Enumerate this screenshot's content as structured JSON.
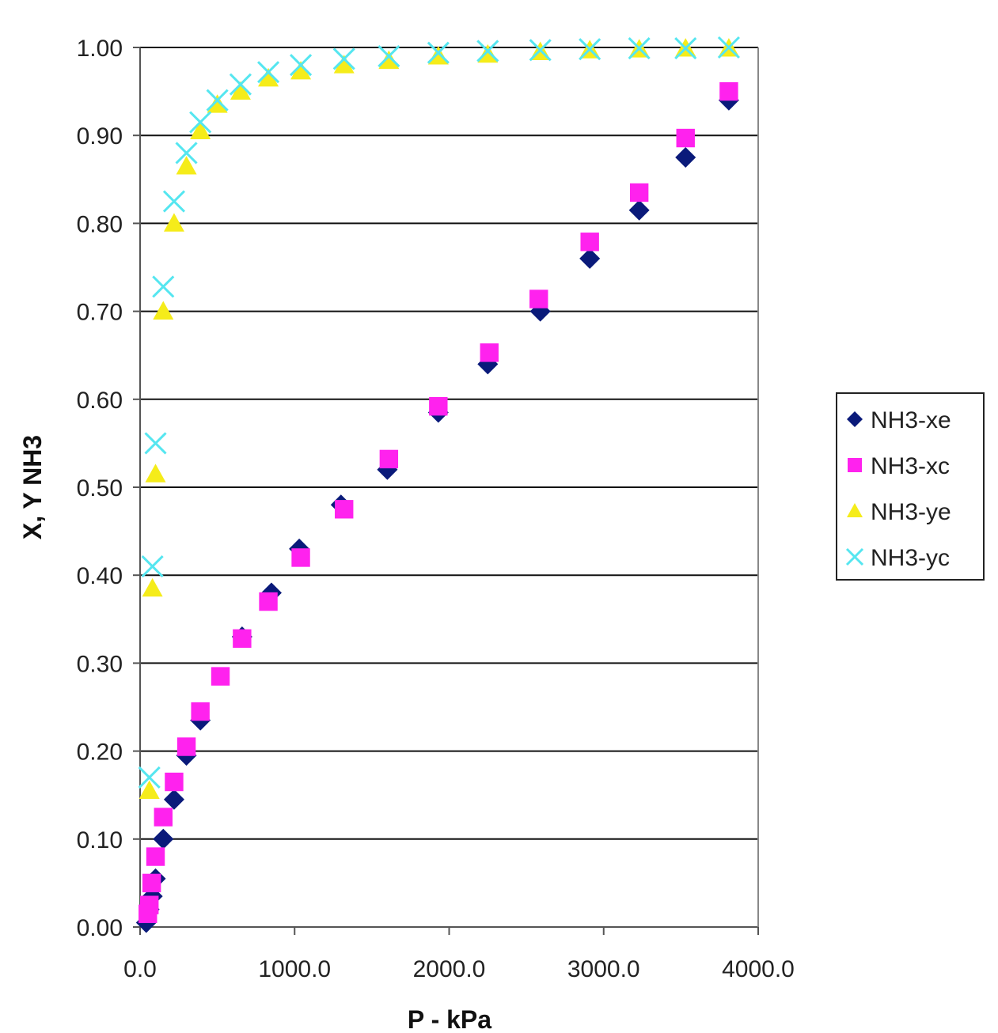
{
  "chart_data": {
    "type": "scatter",
    "xlabel": "P - kPa",
    "ylabel": "X, Y NH3",
    "xlim": [
      0,
      4000
    ],
    "ylim": [
      0,
      1
    ],
    "x_ticks": [
      "0.0",
      "1000.0",
      "2000.0",
      "3000.0",
      "4000.0"
    ],
    "y_ticks": [
      "0.00",
      "0.10",
      "0.20",
      "0.30",
      "0.40",
      "0.50",
      "0.60",
      "0.70",
      "0.80",
      "0.90",
      "1.00"
    ],
    "grid": "horizontal",
    "legend_position": "right",
    "series": [
      {
        "name": "NH3-xe",
        "marker": "diamond",
        "color": "#0a1a7a",
        "x": [
          40,
          60,
          80,
          100,
          150,
          220,
          300,
          390,
          660,
          850,
          1030,
          1300,
          1600,
          1930,
          2250,
          2590,
          2910,
          3230,
          3530,
          3810
        ],
        "y": [
          0.005,
          0.02,
          0.035,
          0.055,
          0.1,
          0.145,
          0.195,
          0.235,
          0.33,
          0.38,
          0.43,
          0.48,
          0.52,
          0.585,
          0.64,
          0.7,
          0.76,
          0.815,
          0.875,
          0.94
        ]
      },
      {
        "name": "NH3-xc",
        "marker": "square",
        "color": "#ff22ee",
        "x": [
          50,
          60,
          75,
          100,
          150,
          220,
          300,
          390,
          520,
          660,
          830,
          1040,
          1320,
          1610,
          1930,
          2260,
          2580,
          2910,
          3230,
          3530,
          3810
        ],
        "y": [
          0.015,
          0.025,
          0.05,
          0.08,
          0.125,
          0.165,
          0.205,
          0.245,
          0.285,
          0.328,
          0.37,
          0.42,
          0.475,
          0.532,
          0.592,
          0.653,
          0.714,
          0.779,
          0.835,
          0.897,
          0.95
        ]
      },
      {
        "name": "NH3-ye",
        "marker": "triangle",
        "color": "#f5ec1a",
        "x": [
          60,
          80,
          100,
          150,
          220,
          300,
          390,
          500,
          650,
          830,
          1040,
          1320,
          1610,
          1930,
          2250,
          2590,
          2910,
          3230,
          3530,
          3810
        ],
        "y": [
          0.155,
          0.385,
          0.515,
          0.7,
          0.8,
          0.865,
          0.905,
          0.935,
          0.95,
          0.965,
          0.973,
          0.98,
          0.985,
          0.99,
          0.992,
          0.995,
          0.997,
          0.998,
          0.999,
          0.999
        ]
      },
      {
        "name": "NH3-yc",
        "marker": "x",
        "color": "#55e6f0",
        "x": [
          60,
          80,
          100,
          150,
          220,
          300,
          390,
          500,
          650,
          830,
          1040,
          1320,
          1610,
          1930,
          2250,
          2590,
          2910,
          3230,
          3530,
          3810
        ],
        "y": [
          0.17,
          0.41,
          0.55,
          0.728,
          0.825,
          0.88,
          0.915,
          0.94,
          0.958,
          0.972,
          0.98,
          0.987,
          0.99,
          0.994,
          0.996,
          0.997,
          0.998,
          0.999,
          0.999,
          1.0
        ]
      }
    ]
  }
}
